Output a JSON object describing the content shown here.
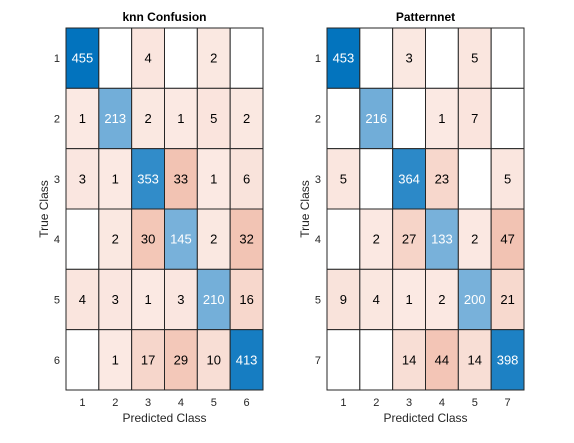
{
  "chart_data": [
    {
      "type": "heatmap",
      "title": "knn Confusion",
      "xlabel": "Predicted Class",
      "ylabel": "True Class",
      "x_categories": [
        "1",
        "2",
        "3",
        "4",
        "5",
        "6"
      ],
      "y_categories": [
        "1",
        "2",
        "3",
        "4",
        "5",
        "6"
      ],
      "matrix": [
        [
          455,
          null,
          4,
          null,
          2,
          null
        ],
        [
          1,
          213,
          2,
          1,
          5,
          2
        ],
        [
          3,
          1,
          353,
          33,
          1,
          6
        ],
        [
          null,
          2,
          30,
          145,
          2,
          32
        ],
        [
          4,
          3,
          1,
          3,
          210,
          16
        ],
        [
          null,
          1,
          17,
          29,
          10,
          413
        ]
      ]
    },
    {
      "type": "heatmap",
      "title": "Patternnet",
      "xlabel": "Predicted Class",
      "ylabel": "True Class",
      "x_categories": [
        "1",
        "2",
        "3",
        "4",
        "5",
        "7"
      ],
      "y_categories": [
        "1",
        "2",
        "3",
        "4",
        "5",
        "7"
      ],
      "matrix": [
        [
          453,
          null,
          3,
          null,
          5,
          null
        ],
        [
          null,
          216,
          null,
          1,
          7,
          null
        ],
        [
          5,
          null,
          364,
          23,
          null,
          5
        ],
        [
          null,
          2,
          27,
          133,
          2,
          47
        ],
        [
          9,
          4,
          1,
          2,
          200,
          21
        ],
        [
          null,
          null,
          14,
          44,
          14,
          398
        ]
      ]
    }
  ],
  "colors": {
    "diag_light": "#b9d3ea",
    "diag_dark": "#0072bd",
    "off_light": "#fbeae4",
    "off_dark": "#f2c3b3",
    "empty": "#ffffff",
    "grid": "#262626",
    "text_dark": "#000000",
    "text_light": "#ffffff"
  }
}
